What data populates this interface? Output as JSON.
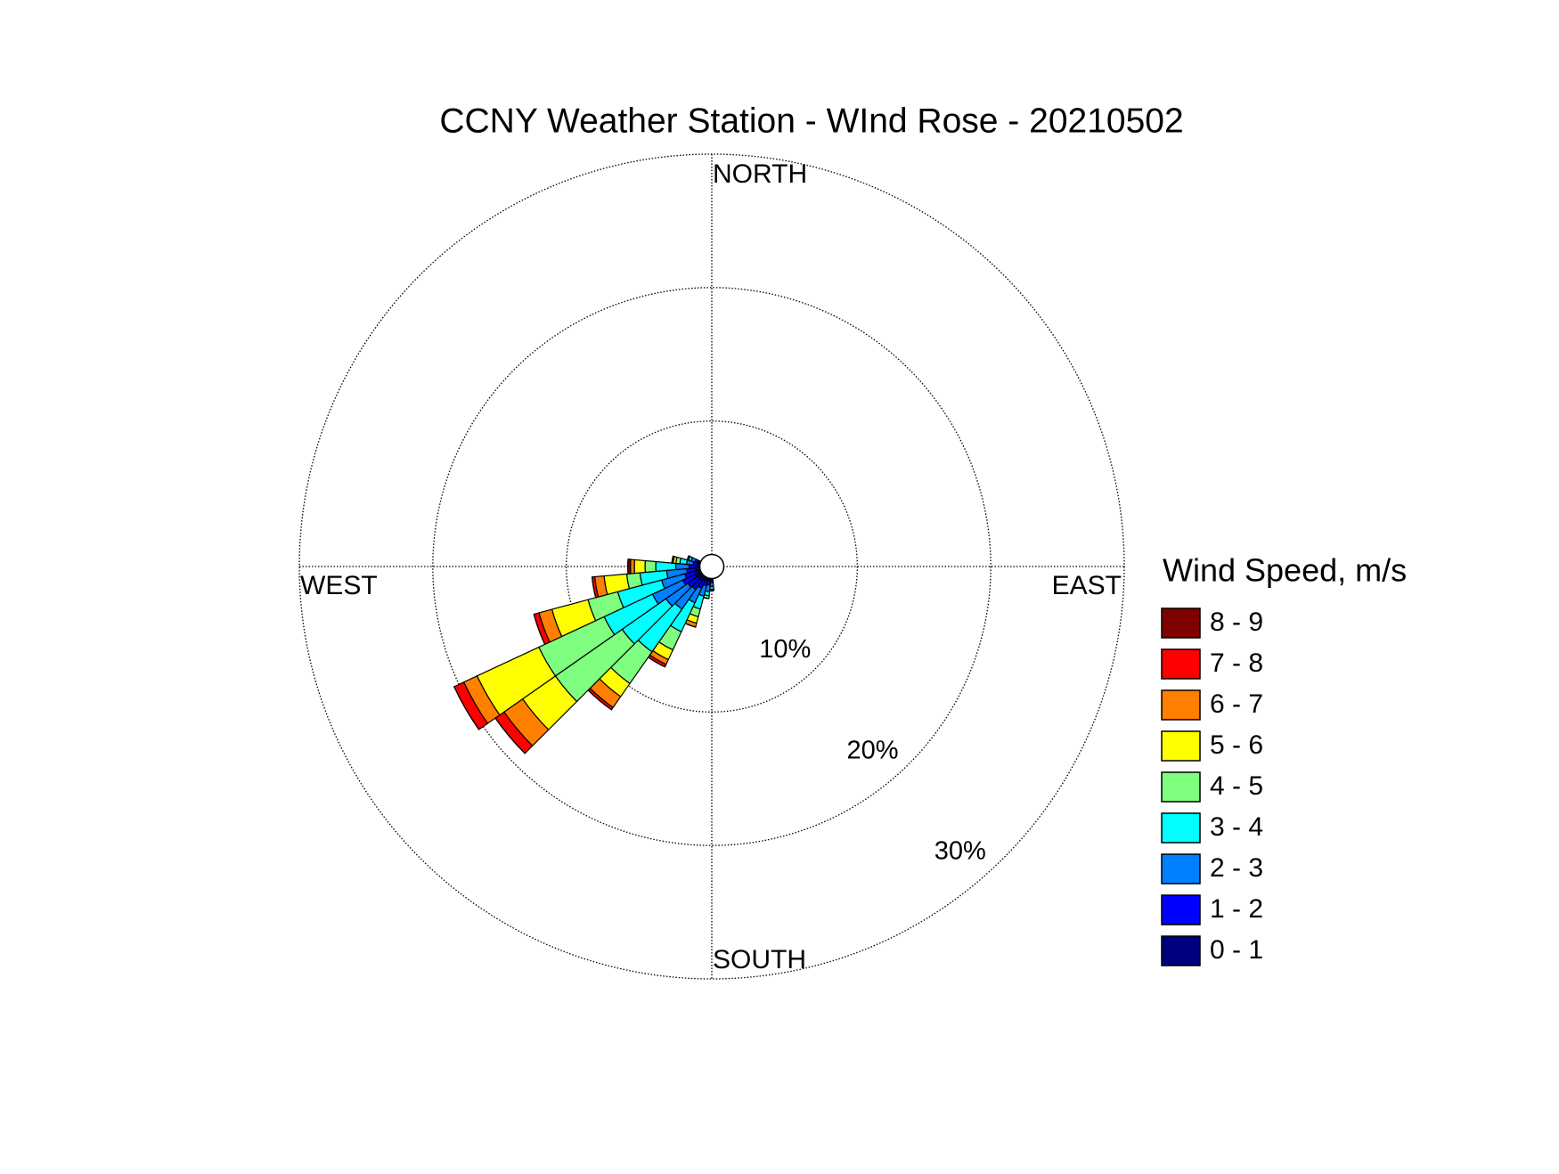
{
  "chart_data": {
    "type": "windrose",
    "title": "CCNY Weather Station - WInd Rose - 20210502",
    "direction_labels": {
      "north": "NORTH",
      "east": "EAST",
      "south": "SOUTH",
      "west": "WEST"
    },
    "legend_title": "Wind Speed, m/s",
    "x": [
      180,
      190,
      200,
      210,
      220,
      230,
      240,
      250,
      260,
      270,
      280,
      290
    ],
    "ylim": [
      0,
      30
    ],
    "yticks": [
      {
        "value": 10,
        "label": "10%"
      },
      {
        "value": 20,
        "label": "20%"
      },
      {
        "value": 30,
        "label": "30%"
      }
    ],
    "grid": true,
    "series": [
      {
        "name": "0 - 1",
        "color": "#00007f",
        "values": [
          0.1,
          0.2,
          0.2,
          0.3,
          0.4,
          0.4,
          0.5,
          0.4,
          0.3,
          0.3,
          0.2,
          0.2
        ]
      },
      {
        "name": "1 - 2",
        "color": "#0000ff",
        "values": [
          0.2,
          0.3,
          0.4,
          0.6,
          0.8,
          0.9,
          1.0,
          0.8,
          0.7,
          0.5,
          0.3,
          0.2
        ]
      },
      {
        "name": "2 - 3",
        "color": "#007fff",
        "values": [
          0.3,
          0.5,
          0.8,
          1.2,
          1.8,
          2.0,
          2.5,
          1.8,
          1.5,
          1.0,
          0.5,
          0.3
        ]
      },
      {
        "name": "3 - 4",
        "color": "#00ffff",
        "values": [
          0.2,
          0.3,
          1.0,
          2.4,
          3.9,
          4.0,
          4.0,
          3.4,
          2.0,
          1.5,
          0.5,
          0.2
        ]
      },
      {
        "name": "4 - 5",
        "color": "#7fff7f",
        "values": [
          0.1,
          0.2,
          0.6,
          1.5,
          2.9,
          6.1,
          5.4,
          2.3,
          1.0,
          0.8,
          0.3,
          0.1
        ]
      },
      {
        "name": "5 - 6",
        "color": "#ffff00",
        "values": [
          0,
          0,
          0.5,
          0.8,
          1.2,
          3.0,
          5.1,
          2.8,
          1.7,
          0.8,
          0.2,
          0
        ]
      },
      {
        "name": "6 - 7",
        "color": "#ff7f00",
        "values": [
          0,
          0,
          0.3,
          0.4,
          1.0,
          1.7,
          1.1,
          1.0,
          0.7,
          0.3,
          0.1,
          0
        ]
      },
      {
        "name": "7 - 8",
        "color": "#ff0000",
        "values": [
          0,
          0,
          0,
          0.2,
          0.2,
          0.8,
          0.8,
          0.4,
          0.2,
          0,
          0,
          0
        ]
      },
      {
        "name": "8 - 9",
        "color": "#7f0000",
        "values": [
          0,
          0,
          0,
          0,
          0,
          0,
          0,
          0,
          0,
          0.2,
          0,
          0
        ]
      }
    ]
  }
}
